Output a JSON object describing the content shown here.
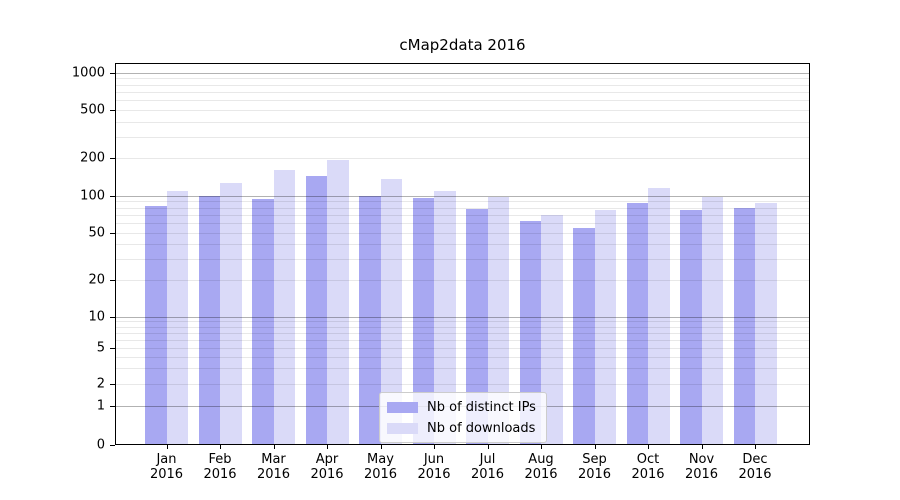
{
  "chart_data": {
    "type": "bar",
    "title": "cMap2data 2016",
    "y_scale": "symlog",
    "ylim": [
      0,
      1200
    ],
    "grid": {
      "enabled": true,
      "which": "both",
      "major_color": "rgba(0,0,0,0.30)",
      "minor_color": "rgba(0,0,0,0.09)",
      "major_values": [
        1,
        10,
        100,
        1000
      ],
      "minor_multiples": [
        2,
        3,
        4,
        5,
        6,
        7,
        8,
        9
      ],
      "minor_bases": [
        1,
        10,
        100
      ]
    },
    "y_ticks": [
      0,
      1,
      2,
      5,
      10,
      20,
      50,
      100,
      200,
      500,
      1000
    ],
    "x_tick_months": [
      "Jan",
      "Feb",
      "Mar",
      "Apr",
      "May",
      "Jun",
      "Jul",
      "Aug",
      "Sep",
      "Oct",
      "Nov",
      "Dec"
    ],
    "x_tick_year": "2016",
    "categories": [
      "Jan 2016",
      "Feb 2016",
      "Mar 2016",
      "Apr 2016",
      "May 2016",
      "Jun 2016",
      "Jul 2016",
      "Aug 2016",
      "Sep 2016",
      "Oct 2016",
      "Nov 2016",
      "Dec 2016"
    ],
    "series": [
      {
        "name": "Nb of distinct IPs",
        "color": "#a8a8f2",
        "values": [
          82,
          99,
          94,
          143,
          99,
          96,
          78,
          62,
          54,
          87,
          76,
          80
        ]
      },
      {
        "name": "Nb of downloads",
        "color": "#dadaf8",
        "values": [
          110,
          127,
          160,
          195,
          137,
          110,
          97,
          70,
          76,
          116,
          98,
          88
        ]
      }
    ],
    "legend_position": "lower center"
  }
}
